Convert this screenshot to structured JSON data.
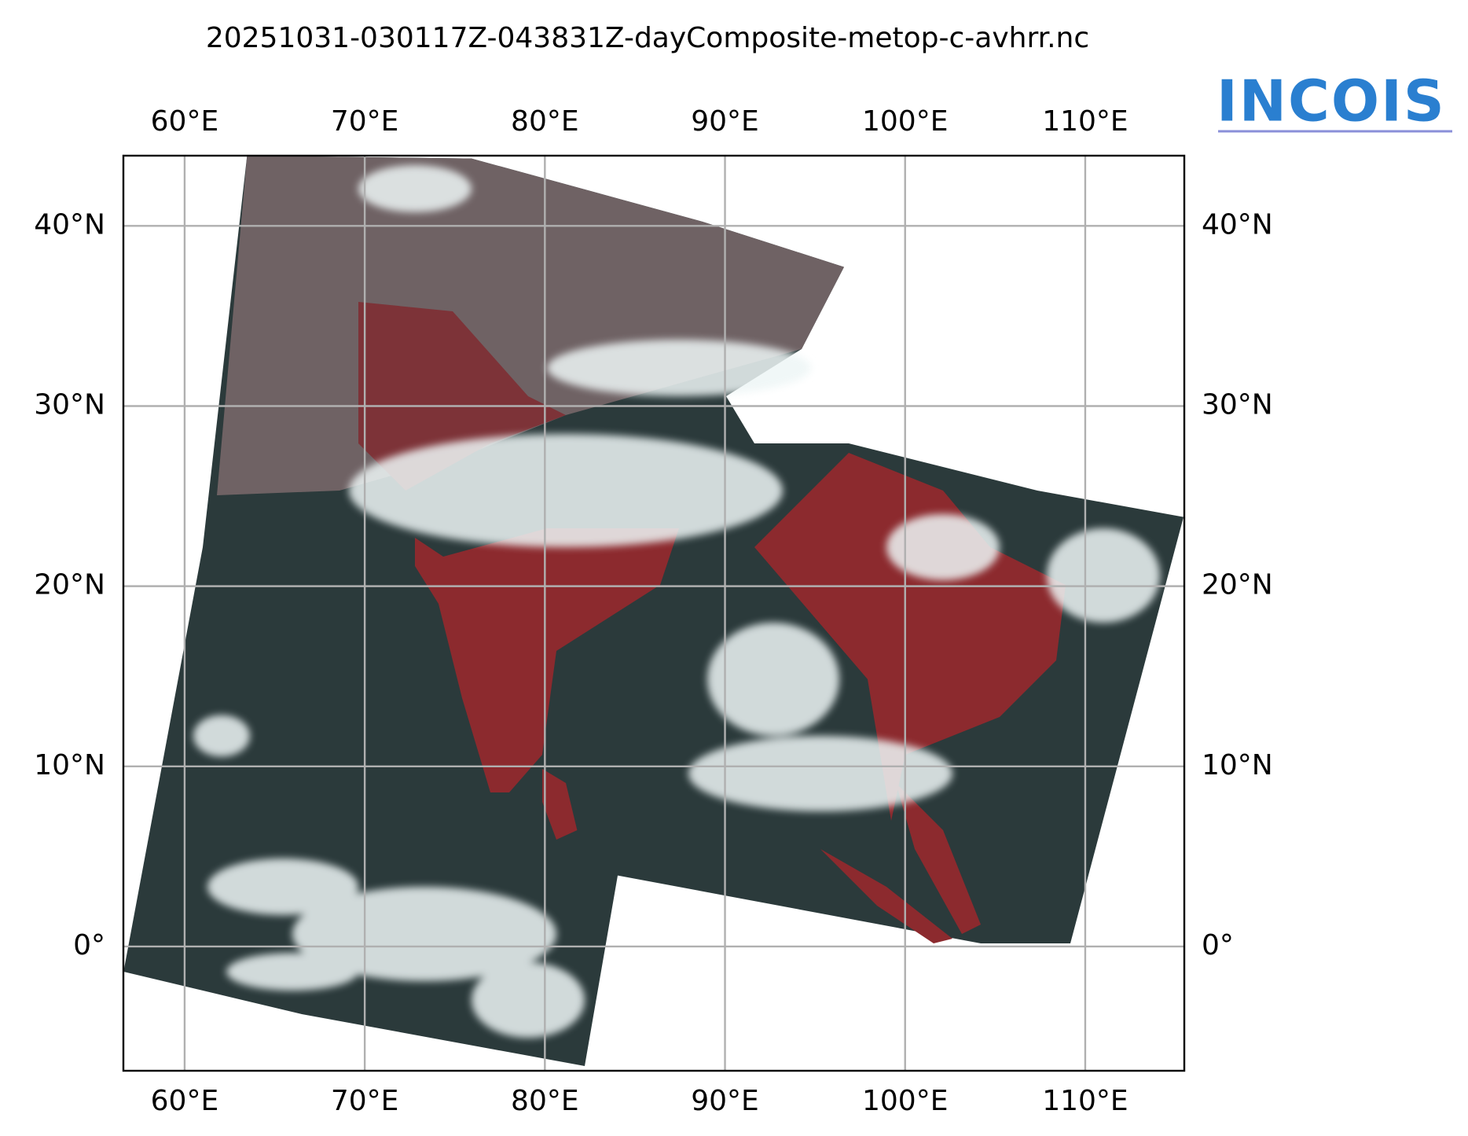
{
  "title": "20251031-030117Z-043831Z-dayComposite-metop-c-avhrr.nc",
  "logo": "INCOIS",
  "map": {
    "xlim": [
      56.6,
      115.5
    ],
    "ylim": [
      -6.9,
      43.9
    ],
    "xticks": [
      {
        "value": 60,
        "label": "60°E"
      },
      {
        "value": 70,
        "label": "70°E"
      },
      {
        "value": 80,
        "label": "80°E"
      },
      {
        "value": 90,
        "label": "90°E"
      },
      {
        "value": 100,
        "label": "100°E"
      },
      {
        "value": 110,
        "label": "110°E"
      }
    ],
    "yticks": [
      {
        "value": 0,
        "label": "0°"
      },
      {
        "value": 10,
        "label": "10°N"
      },
      {
        "value": 20,
        "label": "20°N"
      },
      {
        "value": 30,
        "label": "30°N"
      },
      {
        "value": 40,
        "label": "40°N"
      }
    ],
    "grid": true
  }
}
